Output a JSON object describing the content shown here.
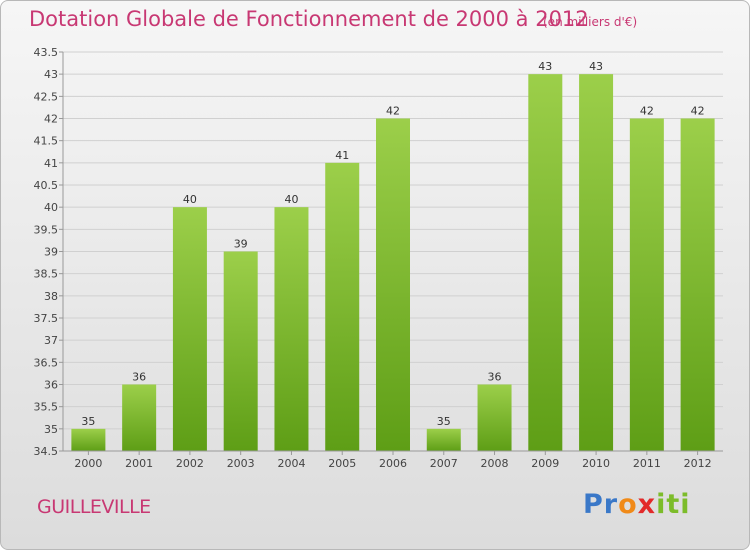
{
  "header": {
    "title": "Dotation Globale de Fonctionnement de 2000 à 2012",
    "subtitle": "(en milliers d'€)"
  },
  "footer": {
    "commune": "GUILLEVILLE",
    "brand": "Proxiti"
  },
  "colors": {
    "title": "#c83873",
    "bar_light": "#9ccf4a",
    "bar_dark": "#5e9e16",
    "grid": "#d0d0d0"
  },
  "chart_data": {
    "type": "bar",
    "title": "Dotation Globale de Fonctionnement de 2000 à 2012",
    "subtitle": "(en milliers d'€)",
    "categories": [
      "2000",
      "2001",
      "2002",
      "2003",
      "2004",
      "2005",
      "2006",
      "2007",
      "2008",
      "2009",
      "2010",
      "2011",
      "2012"
    ],
    "values": [
      35,
      36,
      40,
      39,
      40,
      41,
      42,
      35,
      36,
      43,
      43,
      42,
      42
    ],
    "ylim": [
      34.5,
      43.5
    ],
    "yticks": [
      34.5,
      35,
      35.5,
      36,
      36.5,
      37,
      37.5,
      38,
      38.5,
      39,
      39.5,
      40,
      40.5,
      41,
      41.5,
      42,
      42.5,
      43,
      43.5
    ],
    "grid": true,
    "legend": "none"
  }
}
